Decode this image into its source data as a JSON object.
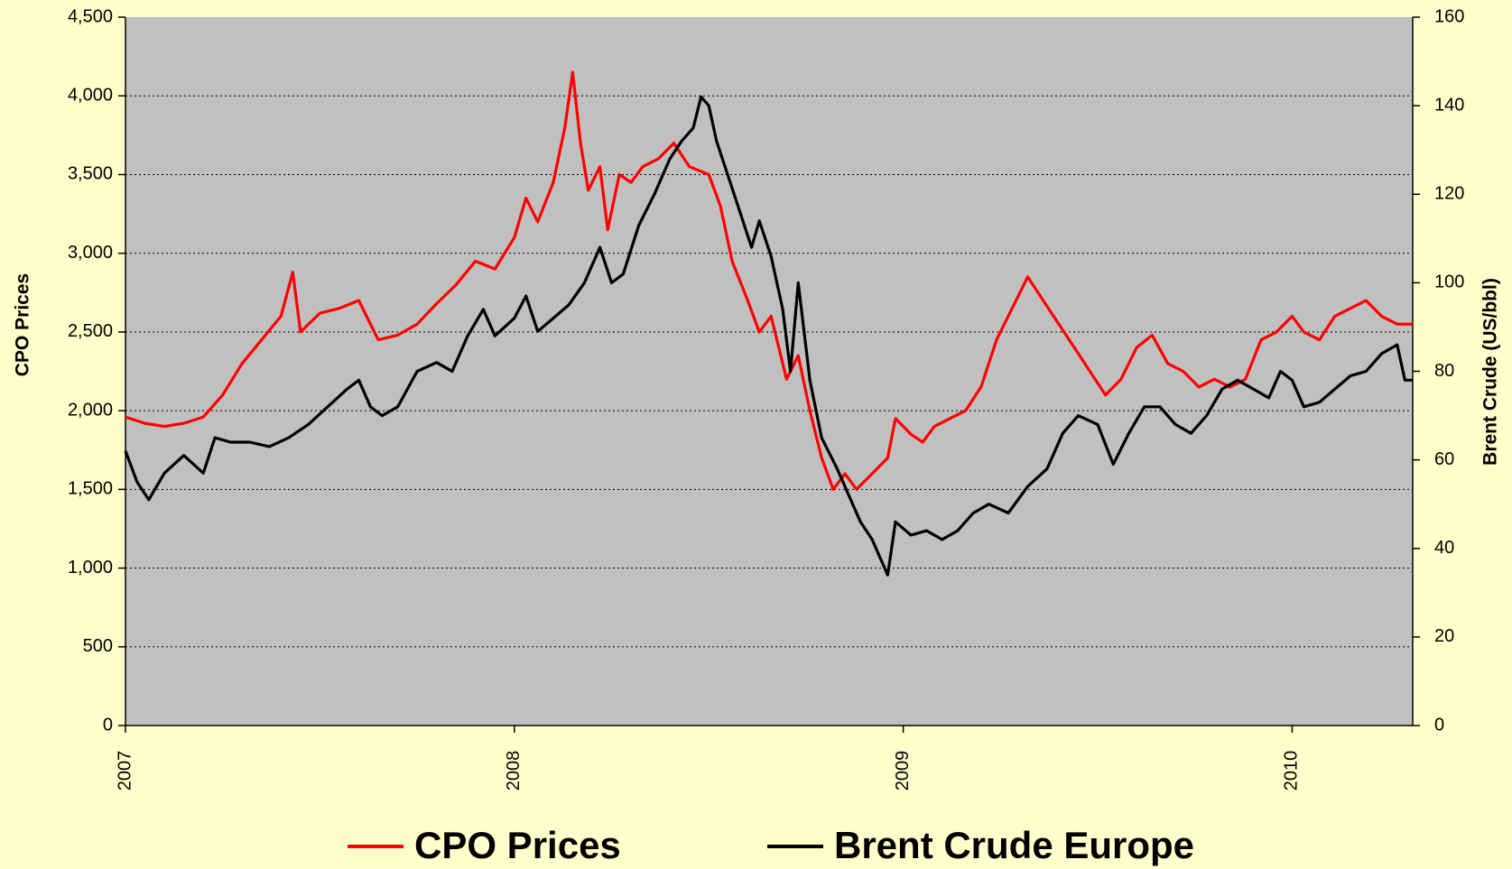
{
  "chart_data": {
    "type": "line",
    "y_label": "CPO Prices",
    "y2_label": "Brent Crude (US/bbl)",
    "xlim": [
      2007,
      2010.31
    ],
    "xticks": [
      2007,
      2008,
      2009,
      2010
    ],
    "ylim": [
      0,
      4500
    ],
    "yticks": [
      {
        "value": 0,
        "label": "0"
      },
      {
        "value": 500,
        "label": "500"
      },
      {
        "value": 1000,
        "label": "1,000"
      },
      {
        "value": 1500,
        "label": "1,500"
      },
      {
        "value": 2000,
        "label": "2,000"
      },
      {
        "value": 2500,
        "label": "2,500"
      },
      {
        "value": 3000,
        "label": "3,000"
      },
      {
        "value": 3500,
        "label": "3,500"
      },
      {
        "value": 4000,
        "label": "4,000"
      },
      {
        "value": 4500,
        "label": "4,500"
      }
    ],
    "y2lim": [
      0,
      160
    ],
    "y2ticks": [
      0,
      20,
      40,
      60,
      80,
      100,
      120,
      140,
      160
    ],
    "grid": true,
    "legend": "bottom",
    "series": [
      {
        "name": "CPO Prices",
        "color": "#ff0000",
        "axis": "y",
        "x": [
          2007.0,
          2007.05,
          2007.1,
          2007.15,
          2007.2,
          2007.25,
          2007.3,
          2007.35,
          2007.4,
          2007.43,
          2007.45,
          2007.5,
          2007.55,
          2007.6,
          2007.65,
          2007.7,
          2007.75,
          2007.8,
          2007.85,
          2007.9,
          2007.95,
          2008.0,
          2008.03,
          2008.06,
          2008.1,
          2008.13,
          2008.15,
          2008.17,
          2008.19,
          2008.22,
          2008.24,
          2008.27,
          2008.3,
          2008.33,
          2008.37,
          2008.41,
          2008.45,
          2008.5,
          2008.53,
          2008.56,
          2008.6,
          2008.63,
          2008.66,
          2008.7,
          2008.73,
          2008.76,
          2008.79,
          2008.82,
          2008.85,
          2008.88,
          2008.92,
          2008.96,
          2008.98,
          2009.02,
          2009.05,
          2009.08,
          2009.12,
          2009.16,
          2009.2,
          2009.24,
          2009.28,
          2009.32,
          2009.36,
          2009.4,
          2009.44,
          2009.48,
          2009.52,
          2009.56,
          2009.6,
          2009.64,
          2009.68,
          2009.72,
          2009.76,
          2009.8,
          2009.84,
          2009.88,
          2009.92,
          2009.96,
          2010.0,
          2010.03,
          2010.07,
          2010.11,
          2010.15,
          2010.19,
          2010.23,
          2010.27,
          2010.31
        ],
        "values": [
          1960,
          1920,
          1900,
          1920,
          1960,
          2100,
          2300,
          2450,
          2600,
          2880,
          2500,
          2620,
          2650,
          2700,
          2450,
          2480,
          2550,
          2680,
          2800,
          2950,
          2900,
          3100,
          3350,
          3200,
          3450,
          3800,
          4150,
          3700,
          3400,
          3550,
          3150,
          3500,
          3450,
          3550,
          3600,
          3700,
          3550,
          3500,
          3300,
          2950,
          2700,
          2500,
          2600,
          2200,
          2350,
          2000,
          1700,
          1500,
          1600,
          1500,
          1600,
          1700,
          1950,
          1850,
          1800,
          1900,
          1950,
          2000,
          2150,
          2450,
          2650,
          2850,
          2700,
          2550,
          2400,
          2250,
          2100,
          2200,
          2400,
          2480,
          2300,
          2250,
          2150,
          2200,
          2150,
          2200,
          2450,
          2500,
          2600,
          2500,
          2450,
          2600,
          2650,
          2700,
          2600,
          2550,
          2550
        ]
      },
      {
        "name": "Brent Crude Europe",
        "color": "#000000",
        "axis": "y2",
        "x": [
          2007.0,
          2007.03,
          2007.06,
          2007.1,
          2007.15,
          2007.2,
          2007.23,
          2007.27,
          2007.32,
          2007.37,
          2007.42,
          2007.47,
          2007.52,
          2007.57,
          2007.6,
          2007.63,
          2007.66,
          2007.7,
          2007.75,
          2007.8,
          2007.84,
          2007.88,
          2007.92,
          2007.95,
          2008.0,
          2008.03,
          2008.06,
          2008.1,
          2008.14,
          2008.18,
          2008.22,
          2008.25,
          2008.28,
          2008.32,
          2008.36,
          2008.4,
          2008.43,
          2008.46,
          2008.48,
          2008.5,
          2008.52,
          2008.55,
          2008.58,
          2008.61,
          2008.63,
          2008.66,
          2008.69,
          2008.71,
          2008.73,
          2008.76,
          2008.79,
          2008.83,
          2008.86,
          2008.89,
          2008.92,
          2008.94,
          2008.96,
          2008.98,
          2009.02,
          2009.06,
          2009.1,
          2009.14,
          2009.18,
          2009.22,
          2009.27,
          2009.32,
          2009.37,
          2009.41,
          2009.45,
          2009.5,
          2009.54,
          2009.58,
          2009.62,
          2009.66,
          2009.7,
          2009.74,
          2009.78,
          2009.82,
          2009.86,
          2009.9,
          2009.94,
          2009.97,
          2010.0,
          2010.03,
          2010.07,
          2010.11,
          2010.15,
          2010.19,
          2010.23,
          2010.27,
          2010.29,
          2010.31
        ],
        "values": [
          62,
          55,
          51,
          57,
          61,
          57,
          65,
          64,
          64,
          63,
          65,
          68,
          72,
          76,
          78,
          72,
          70,
          72,
          80,
          82,
          80,
          88,
          94,
          88,
          92,
          97,
          89,
          92,
          95,
          100,
          108,
          100,
          102,
          113,
          120,
          128,
          132,
          135,
          142,
          140,
          132,
          124,
          116,
          108,
          114,
          106,
          94,
          80,
          100,
          78,
          65,
          58,
          52,
          46,
          42,
          38,
          34,
          46,
          43,
          44,
          42,
          44,
          48,
          50,
          48,
          54,
          58,
          66,
          70,
          68,
          59,
          66,
          72,
          72,
          68,
          66,
          70,
          76,
          78,
          76,
          74,
          80,
          78,
          72,
          73,
          76,
          79,
          80,
          84,
          86,
          78,
          78
        ]
      }
    ]
  }
}
